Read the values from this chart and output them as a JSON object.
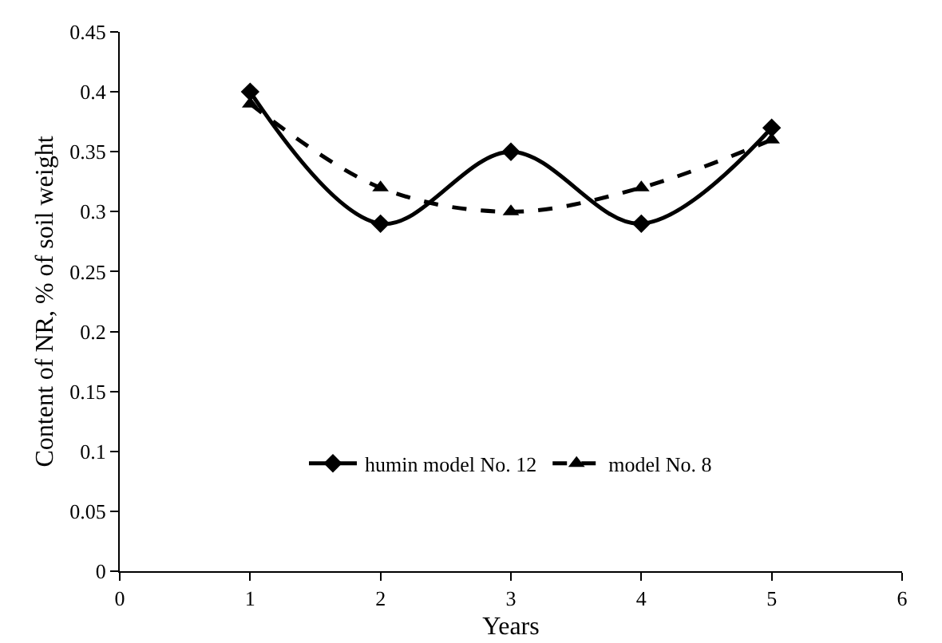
{
  "chart_data": {
    "type": "line",
    "xlabel": "Years",
    "ylabel": "Content of NR, % of soil weight",
    "x": [
      1,
      2,
      3,
      4,
      5
    ],
    "series": [
      {
        "name": "humin model No. 12",
        "color": "#000000",
        "values": [
          0.4,
          0.29,
          0.35,
          0.29,
          0.37
        ],
        "marker": "diamond",
        "line_style": "solid"
      },
      {
        "name": "model No. 8",
        "color": "#000000",
        "values": [
          0.39,
          0.32,
          0.3,
          0.32,
          0.36
        ],
        "marker": "triangle",
        "line_style": "dashed"
      }
    ],
    "xlim": [
      0,
      6
    ],
    "xticks": [
      0,
      1,
      2,
      3,
      4,
      5,
      6
    ],
    "ylim": [
      0,
      0.45
    ],
    "yticks": [
      0,
      0.05,
      0.1,
      0.15,
      0.2,
      0.25,
      0.3,
      0.35,
      0.4,
      0.45
    ],
    "grid": false,
    "legend": "bottom"
  }
}
